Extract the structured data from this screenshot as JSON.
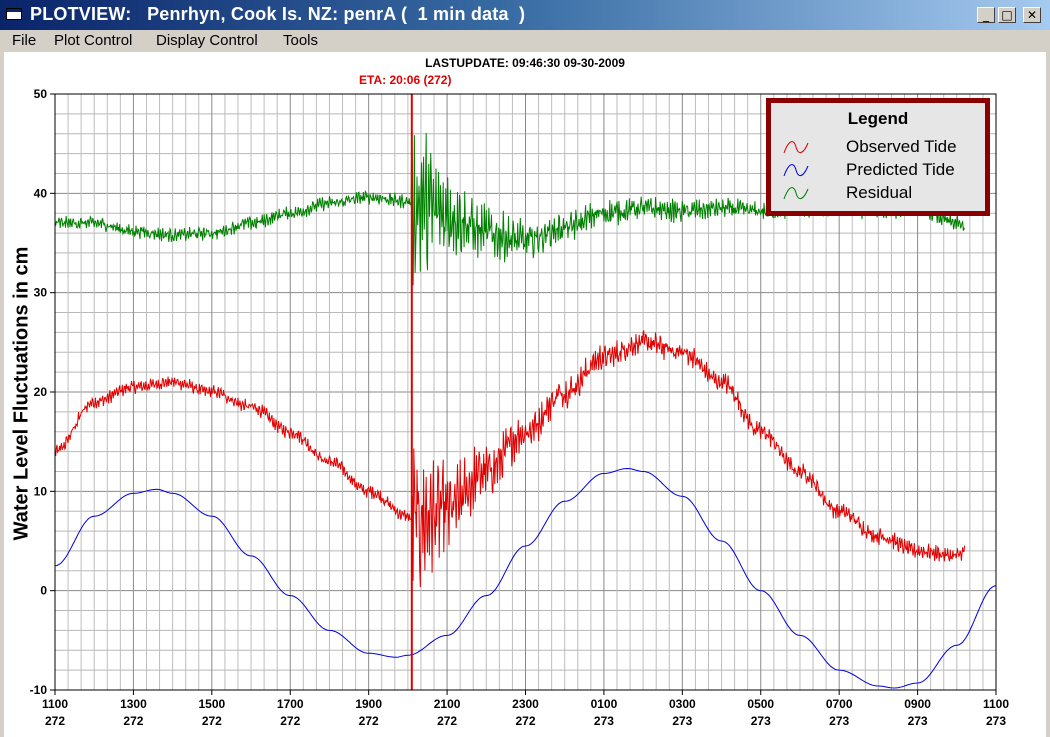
{
  "window": {
    "title": "PLOTVIEW:   Penrhyn, Cook Is. NZ: penrA (  1 min data  )",
    "buttons": {
      "minimize": "_",
      "maximize": "□",
      "close": "✕"
    }
  },
  "menu": [
    "File",
    "Plot Control",
    "Display Control",
    "Tools"
  ],
  "header": {
    "lastupdate": "LASTUPDATE: 09:46:30  09-30-2009",
    "eta": "ETA: 20:06 (272)"
  },
  "legend": {
    "title": "Legend",
    "items": [
      {
        "label": "Observed Tide",
        "color": "#e00000"
      },
      {
        "label": "Predicted Tide",
        "color": "#0000e0"
      },
      {
        "label": "Residual",
        "color": "#008000"
      }
    ]
  },
  "chart_data": {
    "type": "line",
    "ylabel": "Water Level Fluctuations in cm",
    "ylim": [
      -10,
      50
    ],
    "yticks": [
      -10,
      0,
      10,
      20,
      30,
      40,
      50
    ],
    "xlim_hours": [
      11,
      35
    ],
    "xticks": [
      {
        "time": "1100",
        "day": "272"
      },
      {
        "time": "1300",
        "day": "272"
      },
      {
        "time": "1500",
        "day": "272"
      },
      {
        "time": "1700",
        "day": "272"
      },
      {
        "time": "1900",
        "day": "272"
      },
      {
        "time": "2100",
        "day": "272"
      },
      {
        "time": "2300",
        "day": "272"
      },
      {
        "time": "0100",
        "day": "273"
      },
      {
        "time": "0300",
        "day": "273"
      },
      {
        "time": "0500",
        "day": "273"
      },
      {
        "time": "0700",
        "day": "273"
      },
      {
        "time": "0900",
        "day": "273"
      },
      {
        "time": "1100",
        "day": "273"
      }
    ],
    "eta_marker_hour": 20.1,
    "grid": true,
    "series": [
      {
        "name": "Observed Tide",
        "color": "#e00000",
        "x": [
          11,
          12,
          13,
          14,
          15,
          16,
          17,
          18,
          19,
          20,
          20.1,
          21,
          22,
          23,
          24,
          25,
          26,
          27,
          28,
          29,
          30,
          31,
          32,
          33,
          34,
          34.2
        ],
        "y": [
          14,
          19,
          20.5,
          21,
          20,
          18.5,
          16,
          13,
          10,
          7.5,
          7,
          8,
          12,
          16,
          20,
          23.5,
          25,
          24,
          21,
          16,
          12,
          8,
          5.5,
          4,
          3.5,
          4
        ]
      },
      {
        "name": "Predicted Tide",
        "color": "#0000e0",
        "x": [
          11,
          12,
          13,
          13.6,
          14,
          15,
          16,
          17,
          18,
          19,
          19.7,
          20,
          21,
          22,
          23,
          24,
          25,
          25.6,
          26,
          27,
          28,
          29,
          30,
          31,
          32,
          32.4,
          33,
          34,
          35
        ],
        "y": [
          2.5,
          7.5,
          9.8,
          10.2,
          9.8,
          7.5,
          3.5,
          -0.5,
          -4,
          -6.3,
          -6.7,
          -6.5,
          -4.5,
          -0.5,
          4.5,
          9,
          11.8,
          12.3,
          12,
          9.5,
          5,
          0,
          -4.5,
          -8,
          -9.6,
          -9.8,
          -9.3,
          -5.5,
          0.5
        ]
      },
      {
        "name": "Residual",
        "color": "#008000",
        "x": [
          11,
          12,
          13,
          14,
          15,
          16,
          17,
          18,
          19,
          20,
          20.1,
          21,
          22,
          23,
          24,
          25,
          26,
          27,
          28,
          29,
          30,
          31,
          32,
          33,
          34,
          34.2
        ],
        "y": [
          37,
          37,
          36.2,
          35.8,
          36,
          37,
          38,
          39,
          39.6,
          39.2,
          39,
          38,
          36,
          35.2,
          36.5,
          38,
          38.5,
          38.2,
          38.5,
          38.2,
          38.4,
          38.5,
          38.2,
          38.5,
          37,
          36.5
        ]
      }
    ]
  }
}
